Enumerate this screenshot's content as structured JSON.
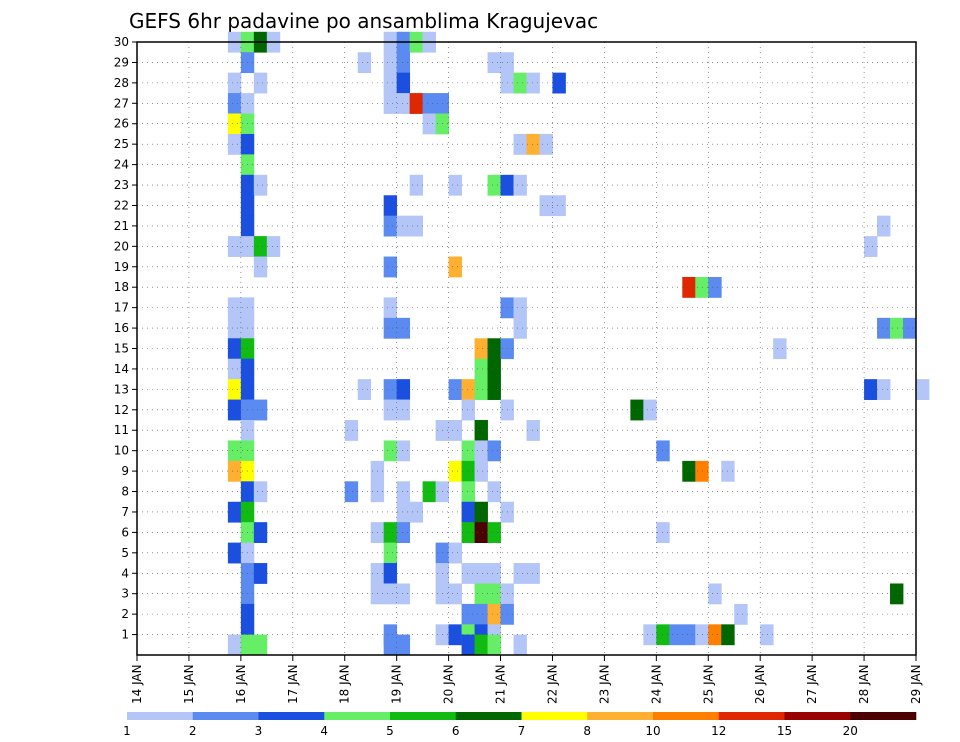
{
  "chart_data": {
    "type": "heatmap",
    "title": "GEFS 6hr padavine po ansamblima Kragujevac",
    "x_tick_labels": [
      "14 JAN",
      "15 JAN",
      "16 JAN",
      "17 JAN",
      "18 JAN",
      "19 JAN",
      "20 JAN",
      "21 JAN",
      "22 JAN",
      "23 JAN",
      "24 JAN",
      "25 JAN",
      "26 JAN",
      "27 JAN",
      "28 JAN",
      "29 JAN"
    ],
    "y_tick_labels": [
      "1",
      "2",
      "3",
      "4",
      "5",
      "6",
      "7",
      "8",
      "9",
      "10",
      "11",
      "12",
      "13",
      "14",
      "15",
      "16",
      "17",
      "18",
      "19",
      "20",
      "21",
      "22",
      "23",
      "24",
      "25",
      "26",
      "27",
      "28",
      "29",
      "30"
    ],
    "ylim": [
      0,
      30
    ],
    "time_step_hours": 6,
    "grid": true,
    "legend": {
      "placement": "bottom",
      "thresholds": [
        "1",
        "2",
        "3",
        "4",
        "5",
        "6",
        "7",
        "8",
        "10",
        "12",
        "15",
        "20"
      ],
      "colors": [
        "#b3c6f7",
        "#5b8af0",
        "#1a4fe0",
        "#66ee66",
        "#11bb11",
        "#006600",
        "#ffff00",
        "#ffb030",
        "#ff7f00",
        "#e02800",
        "#990000",
        "#4d0000"
      ]
    },
    "class_colors": [
      "#b3c6f7",
      "#5b8af0",
      "#1a4fe0",
      "#66ee66",
      "#11bb11",
      "#006600",
      "#ffff00",
      "#ffb030",
      "#ff7f00",
      "#e02800",
      "#990000",
      "#4d0000"
    ],
    "cells": [
      [
        30,
        7,
        0
      ],
      [
        30,
        8,
        3
      ],
      [
        30,
        9,
        5
      ],
      [
        30,
        10,
        0
      ],
      [
        30,
        19,
        0
      ],
      [
        30,
        20,
        1
      ],
      [
        30,
        21,
        3
      ],
      [
        30,
        22,
        0
      ],
      [
        29,
        8,
        1
      ],
      [
        29,
        17,
        0
      ],
      [
        29,
        19,
        0
      ],
      [
        29,
        20,
        1
      ],
      [
        29,
        27,
        0
      ],
      [
        29,
        28,
        0
      ],
      [
        28,
        7,
        0
      ],
      [
        28,
        9,
        0
      ],
      [
        28,
        19,
        0
      ],
      [
        28,
        20,
        2
      ],
      [
        28,
        28,
        0
      ],
      [
        28,
        29,
        3
      ],
      [
        28,
        30,
        0
      ],
      [
        28,
        32,
        2
      ],
      [
        27,
        7,
        1
      ],
      [
        27,
        8,
        0
      ],
      [
        27,
        19,
        0
      ],
      [
        27,
        20,
        0
      ],
      [
        27,
        21,
        9
      ],
      [
        27,
        22,
        1
      ],
      [
        27,
        23,
        1
      ],
      [
        26,
        7,
        6
      ],
      [
        26,
        8,
        3
      ],
      [
        26,
        22,
        0
      ],
      [
        26,
        23,
        3
      ],
      [
        25,
        7,
        0
      ],
      [
        25,
        8,
        2
      ],
      [
        25,
        29,
        0
      ],
      [
        25,
        30,
        7
      ],
      [
        25,
        31,
        0
      ],
      [
        24,
        8,
        3
      ],
      [
        23,
        8,
        2
      ],
      [
        23,
        9,
        0
      ],
      [
        23,
        21,
        0
      ],
      [
        23,
        24,
        0
      ],
      [
        23,
        27,
        3
      ],
      [
        23,
        28,
        2
      ],
      [
        23,
        29,
        0
      ],
      [
        22,
        8,
        2
      ],
      [
        22,
        19,
        2
      ],
      [
        22,
        31,
        0
      ],
      [
        22,
        32,
        0
      ],
      [
        21,
        8,
        2
      ],
      [
        21,
        19,
        1
      ],
      [
        21,
        20,
        0
      ],
      [
        21,
        21,
        0
      ],
      [
        21,
        57,
        0
      ],
      [
        20,
        7,
        0
      ],
      [
        20,
        8,
        0
      ],
      [
        20,
        9,
        4
      ],
      [
        20,
        10,
        0
      ],
      [
        20,
        56,
        0
      ],
      [
        19,
        9,
        0
      ],
      [
        19,
        19,
        1
      ],
      [
        19,
        24,
        7
      ],
      [
        18,
        42,
        9
      ],
      [
        18,
        43,
        3
      ],
      [
        18,
        44,
        1
      ],
      [
        17,
        7,
        0
      ],
      [
        17,
        8,
        0
      ],
      [
        17,
        19,
        0
      ],
      [
        17,
        28,
        1
      ],
      [
        17,
        29,
        0
      ],
      [
        16,
        7,
        0
      ],
      [
        16,
        8,
        0
      ],
      [
        16,
        19,
        1
      ],
      [
        16,
        20,
        1
      ],
      [
        16,
        29,
        0
      ],
      [
        16,
        57,
        1
      ],
      [
        16,
        58,
        3
      ],
      [
        16,
        59,
        1
      ],
      [
        15,
        7,
        2
      ],
      [
        15,
        8,
        4
      ],
      [
        15,
        26,
        7
      ],
      [
        15,
        27,
        5
      ],
      [
        15,
        28,
        1
      ],
      [
        15,
        49,
        0
      ],
      [
        14,
        7,
        0
      ],
      [
        14,
        8,
        2
      ],
      [
        14,
        26,
        3
      ],
      [
        14,
        27,
        5
      ],
      [
        13,
        7,
        6
      ],
      [
        13,
        8,
        2
      ],
      [
        13,
        17,
        0
      ],
      [
        13,
        19,
        1
      ],
      [
        13,
        20,
        2
      ],
      [
        13,
        24,
        1
      ],
      [
        13,
        25,
        7
      ],
      [
        13,
        26,
        3
      ],
      [
        13,
        27,
        5
      ],
      [
        13,
        56,
        2
      ],
      [
        13,
        57,
        0
      ],
      [
        13,
        60,
        0
      ],
      [
        12,
        7,
        2
      ],
      [
        12,
        8,
        1
      ],
      [
        12,
        9,
        1
      ],
      [
        12,
        19,
        0
      ],
      [
        12,
        20,
        0
      ],
      [
        12,
        25,
        0
      ],
      [
        12,
        28,
        0
      ],
      [
        12,
        38,
        5
      ],
      [
        12,
        39,
        0
      ],
      [
        11,
        8,
        0
      ],
      [
        11,
        16,
        0
      ],
      [
        11,
        23,
        0
      ],
      [
        11,
        24,
        0
      ],
      [
        11,
        26,
        5
      ],
      [
        11,
        30,
        0
      ],
      [
        10,
        7,
        3
      ],
      [
        10,
        8,
        3
      ],
      [
        10,
        19,
        3
      ],
      [
        10,
        20,
        0
      ],
      [
        10,
        25,
        3
      ],
      [
        10,
        26,
        0
      ],
      [
        10,
        27,
        1
      ],
      [
        10,
        40,
        1
      ],
      [
        9,
        7,
        7
      ],
      [
        9,
        8,
        6
      ],
      [
        9,
        18,
        0
      ],
      [
        9,
        24,
        6
      ],
      [
        9,
        25,
        4
      ],
      [
        9,
        26,
        0
      ],
      [
        9,
        42,
        5
      ],
      [
        9,
        43,
        8
      ],
      [
        9,
        45,
        0
      ],
      [
        8,
        8,
        2
      ],
      [
        8,
        9,
        0
      ],
      [
        8,
        16,
        1
      ],
      [
        8,
        18,
        0
      ],
      [
        8,
        20,
        0
      ],
      [
        8,
        22,
        4
      ],
      [
        8,
        23,
        0
      ],
      [
        8,
        25,
        3
      ],
      [
        8,
        27,
        0
      ],
      [
        7,
        7,
        2
      ],
      [
        7,
        8,
        4
      ],
      [
        7,
        20,
        0
      ],
      [
        7,
        21,
        0
      ],
      [
        7,
        25,
        2
      ],
      [
        7,
        26,
        5
      ],
      [
        7,
        28,
        0
      ],
      [
        6,
        8,
        3
      ],
      [
        6,
        9,
        2
      ],
      [
        6,
        18,
        0
      ],
      [
        6,
        19,
        4
      ],
      [
        6,
        20,
        1
      ],
      [
        6,
        25,
        4
      ],
      [
        6,
        26,
        11
      ],
      [
        6,
        27,
        4
      ],
      [
        6,
        40,
        0
      ],
      [
        5,
        7,
        2
      ],
      [
        5,
        8,
        0
      ],
      [
        5,
        19,
        3
      ],
      [
        5,
        23,
        1
      ],
      [
        5,
        24,
        0
      ],
      [
        4,
        8,
        1
      ],
      [
        4,
        9,
        2
      ],
      [
        4,
        18,
        0
      ],
      [
        4,
        19,
        2
      ],
      [
        4,
        23,
        0
      ],
      [
        4,
        25,
        0
      ],
      [
        4,
        26,
        0
      ],
      [
        4,
        27,
        0
      ],
      [
        4,
        29,
        0
      ],
      [
        4,
        30,
        0
      ],
      [
        3,
        8,
        1
      ],
      [
        3,
        18,
        0
      ],
      [
        3,
        19,
        0
      ],
      [
        3,
        20,
        0
      ],
      [
        3,
        23,
        0
      ],
      [
        3,
        24,
        0
      ],
      [
        3,
        26,
        3
      ],
      [
        3,
        27,
        3
      ],
      [
        3,
        28,
        0
      ],
      [
        3,
        44,
        0
      ],
      [
        3,
        58,
        5
      ],
      [
        2,
        8,
        2
      ],
      [
        2,
        25,
        1
      ],
      [
        2,
        26,
        1
      ],
      [
        2,
        27,
        7
      ],
      [
        2,
        28,
        1
      ],
      [
        2,
        46,
        0
      ],
      [
        1,
        8,
        2
      ],
      [
        1,
        19,
        1
      ],
      [
        1,
        23,
        0
      ],
      [
        1,
        24,
        2
      ],
      [
        1,
        25,
        3
      ],
      [
        1,
        26,
        2
      ],
      [
        1,
        27,
        0
      ],
      [
        1,
        39,
        0
      ],
      [
        1,
        40,
        4
      ],
      [
        1,
        41,
        1
      ],
      [
        1,
        42,
        1
      ],
      [
        1,
        43,
        0
      ],
      [
        1,
        44,
        8
      ],
      [
        1,
        45,
        5
      ],
      [
        1,
        48,
        0
      ],
      [
        0.5,
        7,
        0
      ],
      [
        0.5,
        8,
        3
      ],
      [
        0.5,
        9,
        3
      ],
      [
        0.5,
        19,
        1
      ],
      [
        0.5,
        20,
        1
      ],
      [
        0.5,
        25,
        2
      ],
      [
        0.5,
        26,
        4
      ],
      [
        0.5,
        27,
        3
      ],
      [
        0.5,
        29,
        0
      ]
    ]
  }
}
